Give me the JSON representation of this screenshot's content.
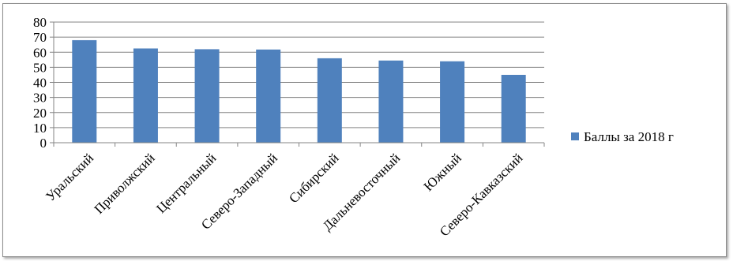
{
  "chart_data": {
    "type": "bar",
    "categories": [
      "Уральский",
      "Приволжский",
      "Центральный",
      "Северо-Западный",
      "Сибирский",
      "Дальневосточный",
      "Южный",
      "Северо-Кавказский"
    ],
    "series": [
      {
        "name": "Баллы за 2018 г",
        "values": [
          68,
          62.5,
          62,
          61.8,
          56,
          54.5,
          54,
          45
        ],
        "color": "#4f81bd"
      }
    ],
    "yticks": [
      "0",
      "10",
      "20",
      "30",
      "40",
      "50",
      "60",
      "70",
      "80"
    ],
    "ylim": [
      0,
      80
    ],
    "grid": true,
    "legend_position": "right"
  }
}
